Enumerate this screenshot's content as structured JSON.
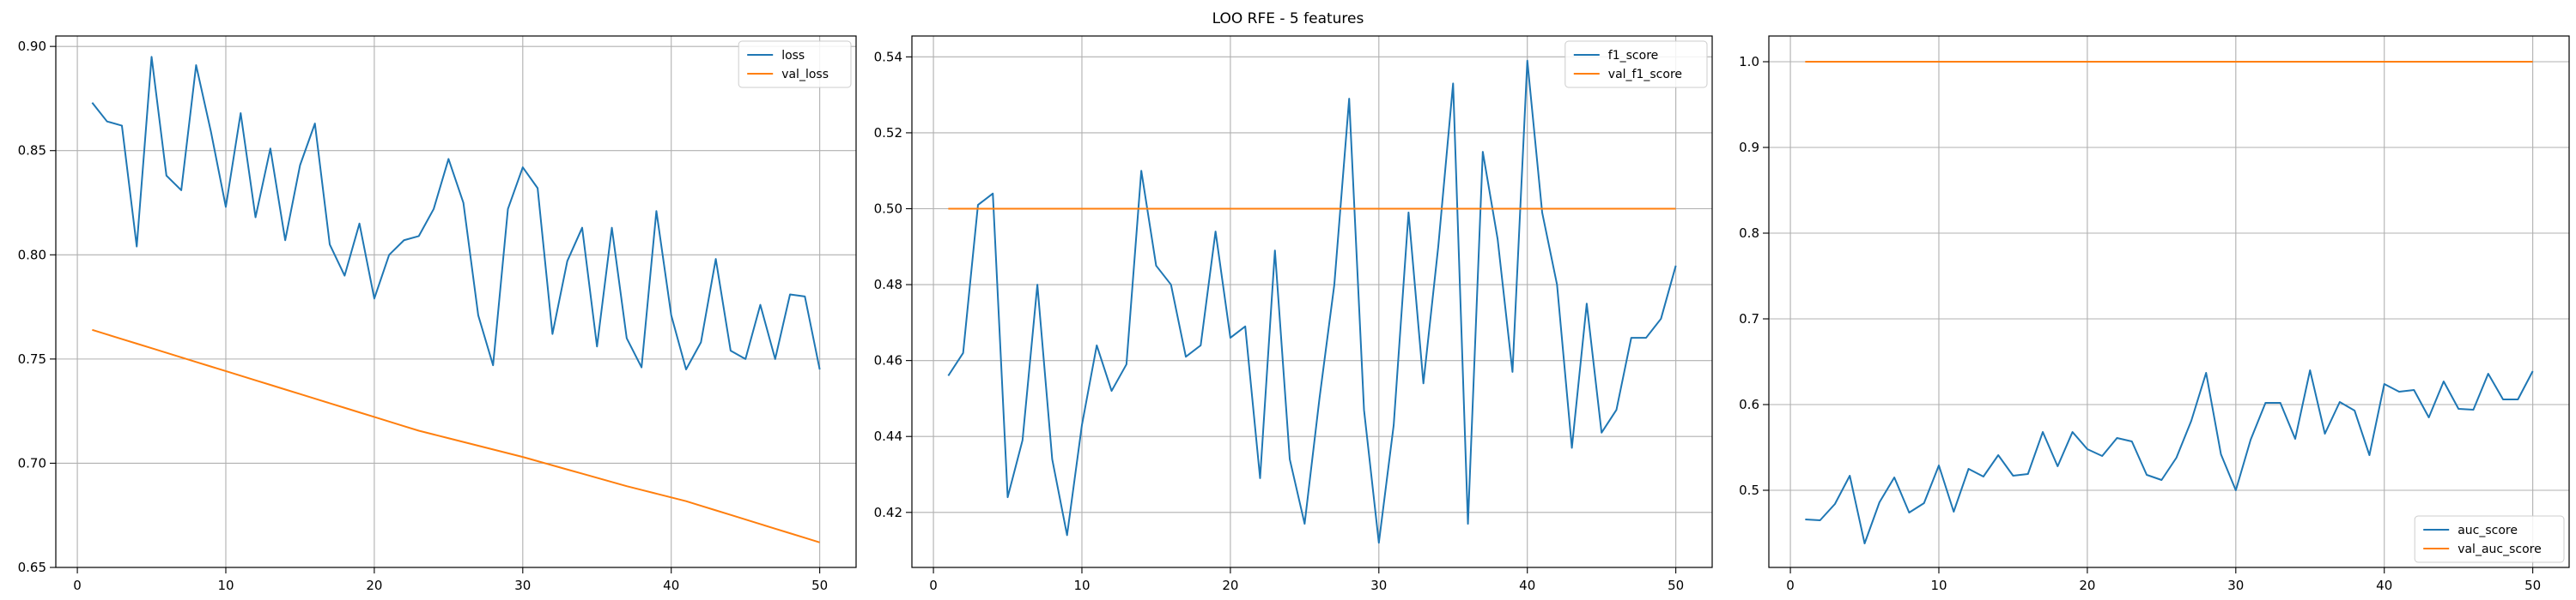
{
  "figure": {
    "title": "LOO RFE - 5 features"
  },
  "chart_data": [
    {
      "type": "line",
      "xlim": [
        -1.45,
        52.45
      ],
      "ylim": [
        0.65,
        0.905
      ],
      "x_ticks": [
        0,
        10,
        20,
        30,
        40,
        50
      ],
      "y_ticks": [
        0.65,
        0.7,
        0.75,
        0.8,
        0.85,
        0.9
      ],
      "y_tick_labels": [
        "0.65",
        "0.70",
        "0.75",
        "0.80",
        "0.85",
        "0.90"
      ],
      "grid": true,
      "legend_position": "upper right",
      "series": [
        {
          "name": "loss",
          "color": "#1f77b4",
          "values": [
            0.873,
            0.864,
            0.862,
            0.804,
            0.895,
            0.838,
            0.831,
            0.891,
            0.859,
            0.823,
            0.868,
            0.818,
            0.851,
            0.807,
            0.843,
            0.863,
            0.805,
            0.79,
            0.815,
            0.779,
            0.8,
            0.807,
            0.809,
            0.822,
            0.846,
            0.825,
            0.771,
            0.747,
            0.822,
            0.842,
            0.832,
            0.762,
            0.797,
            0.813,
            0.756,
            0.813,
            0.76,
            0.746,
            0.821,
            0.771,
            0.745,
            0.758,
            0.798,
            0.754,
            0.75,
            0.776,
            0.75,
            0.781,
            0.78,
            0.745
          ]
        },
        {
          "name": "val_loss",
          "color": "#ff7f0e",
          "values": [
            0.764,
            0.7618,
            0.7596,
            0.7574,
            0.7552,
            0.753,
            0.7508,
            0.7486,
            0.7464,
            0.7442,
            0.742,
            0.7398,
            0.7376,
            0.7354,
            0.7332,
            0.731,
            0.7288,
            0.7266,
            0.7244,
            0.7222,
            0.72,
            0.7178,
            0.7156,
            0.7138,
            0.712,
            0.7102,
            0.7084,
            0.7066,
            0.7048,
            0.703,
            0.701,
            0.699,
            0.697,
            0.695,
            0.693,
            0.691,
            0.689,
            0.6872,
            0.6854,
            0.6836,
            0.6818,
            0.6796,
            0.6774,
            0.6752,
            0.673,
            0.6708,
            0.6686,
            0.6664,
            0.6642,
            0.662
          ]
        }
      ]
    },
    {
      "type": "line",
      "xlim": [
        -1.45,
        52.45
      ],
      "ylim": [
        0.4055,
        0.5455
      ],
      "x_ticks": [
        0,
        10,
        20,
        30,
        40,
        50
      ],
      "y_ticks": [
        0.42,
        0.44,
        0.46,
        0.48,
        0.5,
        0.52,
        0.54
      ],
      "y_tick_labels": [
        "0.42",
        "0.44",
        "0.46",
        "0.48",
        "0.50",
        "0.52",
        "0.54"
      ],
      "grid": true,
      "legend_position": "upper right",
      "series": [
        {
          "name": "f1_score",
          "color": "#1f77b4",
          "values": [
            0.456,
            0.462,
            0.501,
            0.504,
            0.424,
            0.439,
            0.48,
            0.434,
            0.414,
            0.443,
            0.464,
            0.452,
            0.459,
            0.51,
            0.485,
            0.48,
            0.461,
            0.464,
            0.494,
            0.466,
            0.469,
            0.429,
            0.489,
            0.434,
            0.417,
            0.45,
            0.48,
            0.529,
            0.447,
            0.412,
            0.443,
            0.499,
            0.454,
            0.49,
            0.533,
            0.417,
            0.515,
            0.492,
            0.457,
            0.539,
            0.499,
            0.48,
            0.437,
            0.475,
            0.441,
            0.447,
            0.466,
            0.466,
            0.471,
            0.485
          ]
        },
        {
          "name": "val_f1_score",
          "color": "#ff7f0e",
          "values": [
            0.5,
            0.5,
            0.5,
            0.5,
            0.5,
            0.5,
            0.5,
            0.5,
            0.5,
            0.5,
            0.5,
            0.5,
            0.5,
            0.5,
            0.5,
            0.5,
            0.5,
            0.5,
            0.5,
            0.5,
            0.5,
            0.5,
            0.5,
            0.5,
            0.5,
            0.5,
            0.5,
            0.5,
            0.5,
            0.5,
            0.5,
            0.5,
            0.5,
            0.5,
            0.5,
            0.5,
            0.5,
            0.5,
            0.5,
            0.5,
            0.5,
            0.5,
            0.5,
            0.5,
            0.5,
            0.5,
            0.5,
            0.5,
            0.5,
            0.5
          ]
        }
      ]
    },
    {
      "type": "line",
      "xlim": [
        -1.45,
        52.45
      ],
      "ylim": [
        0.41,
        1.03
      ],
      "x_ticks": [
        0,
        10,
        20,
        30,
        40,
        50
      ],
      "y_ticks": [
        0.5,
        0.6,
        0.7,
        0.8,
        0.9,
        1.0
      ],
      "y_tick_labels": [
        "0.5",
        "0.6",
        "0.7",
        "0.8",
        "0.9",
        "1.0"
      ],
      "grid": true,
      "legend_position": "lower right",
      "series": [
        {
          "name": "auc_score",
          "color": "#1f77b4",
          "values": [
            0.466,
            0.465,
            0.484,
            0.517,
            0.438,
            0.486,
            0.515,
            0.474,
            0.485,
            0.529,
            0.475,
            0.525,
            0.516,
            0.541,
            0.517,
            0.519,
            0.568,
            0.528,
            0.568,
            0.548,
            0.54,
            0.561,
            0.557,
            0.518,
            0.512,
            0.538,
            0.581,
            0.637,
            0.542,
            0.5,
            0.559,
            0.602,
            0.602,
            0.56,
            0.64,
            0.566,
            0.603,
            0.593,
            0.541,
            0.624,
            0.615,
            0.617,
            0.585,
            0.627,
            0.595,
            0.594,
            0.636,
            0.606,
            0.606,
            0.639
          ]
        },
        {
          "name": "val_auc_score",
          "color": "#ff7f0e",
          "values": [
            1.0,
            1.0,
            1.0,
            1.0,
            1.0,
            1.0,
            1.0,
            1.0,
            1.0,
            1.0,
            1.0,
            1.0,
            1.0,
            1.0,
            1.0,
            1.0,
            1.0,
            1.0,
            1.0,
            1.0,
            1.0,
            1.0,
            1.0,
            1.0,
            1.0,
            1.0,
            1.0,
            1.0,
            1.0,
            1.0,
            1.0,
            1.0,
            1.0,
            1.0,
            1.0,
            1.0,
            1.0,
            1.0,
            1.0,
            1.0,
            1.0,
            1.0,
            1.0,
            1.0,
            1.0,
            1.0,
            1.0,
            1.0,
            1.0,
            1.0
          ]
        }
      ]
    }
  ]
}
